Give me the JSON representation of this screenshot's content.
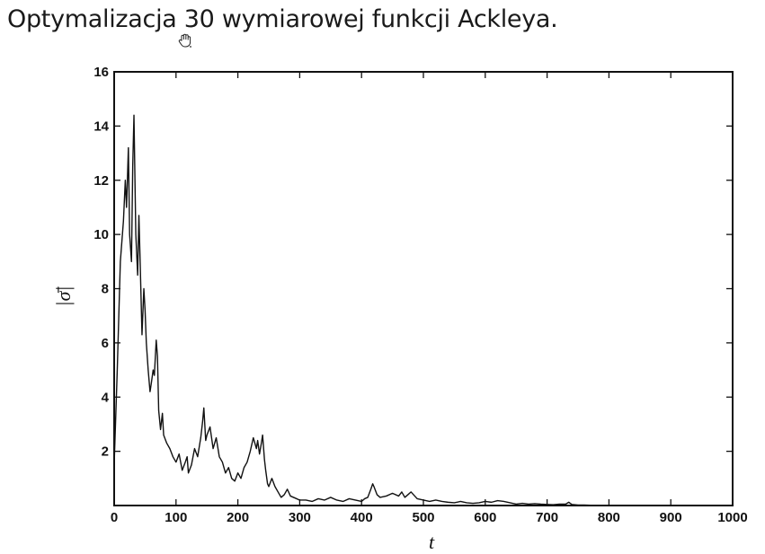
{
  "slide": {
    "title": "Optymalizacja 30 wymiarowej funkcji Ackleya.",
    "cursor_icon": "hand-cursor-icon"
  },
  "chart_data": {
    "type": "line",
    "title": "",
    "xlabel": "t",
    "ylabel": "|σ̄|",
    "xlim": [
      0,
      1000
    ],
    "ylim": [
      0,
      16
    ],
    "xticks": [
      0,
      100,
      200,
      300,
      400,
      500,
      600,
      700,
      800,
      900,
      1000
    ],
    "yticks": [
      2,
      4,
      6,
      8,
      10,
      12,
      14,
      16
    ],
    "grid": false,
    "colors": {
      "line": "#111111",
      "axes": "#111111"
    },
    "series": [
      {
        "values_x": [
          0,
          5,
          10,
          15,
          18,
          20,
          23,
          25,
          28,
          30,
          32,
          35,
          38,
          40,
          42,
          45,
          48,
          50,
          52,
          55,
          58,
          60,
          63,
          65,
          68,
          70,
          72,
          75,
          78,
          80,
          85,
          90,
          95,
          100,
          105,
          110,
          115,
          118,
          120,
          125,
          130,
          135,
          140,
          143,
          145,
          148,
          150,
          155,
          160,
          165,
          170,
          175,
          180,
          185,
          190,
          195,
          200,
          205,
          210,
          215,
          220,
          225,
          230,
          232,
          235,
          238,
          240,
          243,
          245,
          248,
          250,
          255,
          260,
          265,
          270,
          275,
          280,
          285,
          290,
          295,
          300,
          310,
          320,
          330,
          340,
          350,
          360,
          370,
          380,
          390,
          400,
          405,
          410,
          415,
          418,
          420,
          425,
          430,
          440,
          450,
          460,
          465,
          470,
          475,
          480,
          490,
          500,
          510,
          520,
          530,
          540,
          550,
          560,
          570,
          580,
          590,
          600,
          610,
          620,
          630,
          640,
          650,
          660,
          670,
          680,
          690,
          700,
          710,
          720,
          730,
          735,
          740,
          750,
          760,
          770,
          780,
          790,
          800,
          850,
          900,
          950,
          1000
        ],
        "values": [
          1.5,
          5,
          9,
          10.5,
          12,
          11,
          13.2,
          10,
          9,
          12.5,
          14.4,
          10,
          8.5,
          10.7,
          9,
          6.3,
          8,
          7.2,
          6,
          5,
          4.2,
          4.5,
          5,
          4.8,
          6.1,
          5.5,
          3.5,
          2.8,
          3.4,
          2.6,
          2.3,
          2.1,
          1.8,
          1.6,
          1.9,
          1.3,
          1.6,
          1.8,
          1.2,
          1.5,
          2.1,
          1.8,
          2.5,
          3.1,
          3.6,
          2.4,
          2.6,
          2.9,
          2.1,
          2.5,
          1.8,
          1.6,
          1.2,
          1.4,
          1,
          0.9,
          1.2,
          1,
          1.4,
          1.6,
          2,
          2.5,
          2.1,
          2.4,
          1.9,
          2.3,
          2.6,
          1.7,
          1.3,
          0.8,
          0.7,
          1,
          0.7,
          0.5,
          0.3,
          0.4,
          0.6,
          0.35,
          0.3,
          0.25,
          0.2,
          0.2,
          0.15,
          0.25,
          0.2,
          0.3,
          0.2,
          0.15,
          0.25,
          0.2,
          0.15,
          0.25,
          0.3,
          0.6,
          0.8,
          0.7,
          0.4,
          0.3,
          0.35,
          0.45,
          0.35,
          0.5,
          0.3,
          0.4,
          0.5,
          0.25,
          0.2,
          0.15,
          0.2,
          0.15,
          0.12,
          0.1,
          0.15,
          0.1,
          0.08,
          0.1,
          0.15,
          0.12,
          0.18,
          0.15,
          0.1,
          0.05,
          0.08,
          0.05,
          0.07,
          0.05,
          0.04,
          0.03,
          0.05,
          0.05,
          0.12,
          0.04,
          0.02,
          0.02,
          0.01,
          0.01,
          0.01,
          0.01,
          0.01,
          0.01,
          0.01,
          0.01
        ]
      }
    ]
  }
}
